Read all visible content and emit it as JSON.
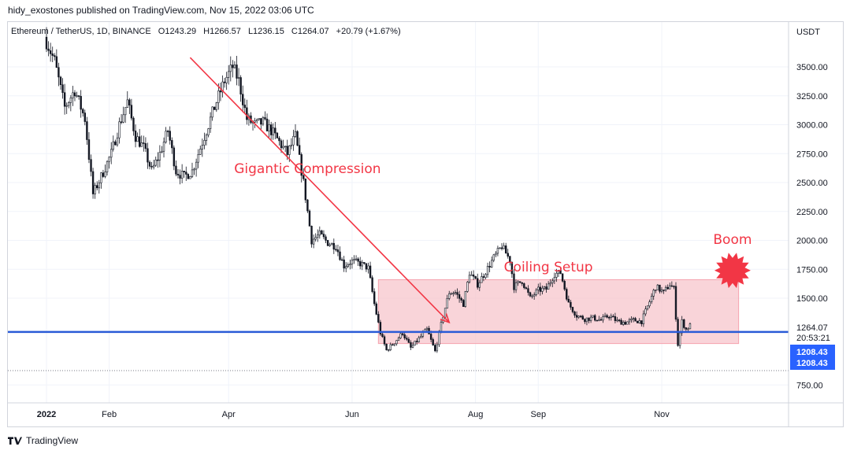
{
  "header": {
    "publisher": "hidy_exostones published on TradingView.com, Nov 15, 2022 03:06 UTC"
  },
  "legend": {
    "symbol": "Ethereum / TetherUS, 1D, BINANCE",
    "open": "O1243.29",
    "high": "H1266.57",
    "low": "L1236.15",
    "close": "C1264.07",
    "change": "+20.79 (+1.67%)"
  },
  "footer": {
    "brand": "TradingView"
  },
  "colors": {
    "candle": "#131722",
    "annotation": "#f23645",
    "zone_fill": "#f7c5cc",
    "support_line": "#2a5bd7",
    "price_badge": "#2962ff"
  },
  "chart_data": {
    "type": "line",
    "title": "",
    "xlabel": "",
    "ylabel": "USDT",
    "ylim": [
      580,
      3900
    ],
    "y_ticks": [
      "3500.00",
      "3250.00",
      "3000.00",
      "2750.00",
      "2500.00",
      "2250.00",
      "2000.00",
      "1750.00",
      "1500.00",
      "750.00"
    ],
    "x_ticks": [
      "2022",
      "Feb",
      "Apr",
      "Jun",
      "Aug",
      "Sep",
      "Nov"
    ],
    "x_tick_dates": [
      "2022-01-01",
      "2022-02-01",
      "2022-04-01",
      "2022-06-01",
      "2022-08-01",
      "2022-09-01",
      "2022-11-01"
    ],
    "grid": true,
    "series": [
      {
        "values_note_free": true,
        "points": [
          [
            "2022-01-01",
            3720
          ],
          [
            "2022-01-05",
            3550
          ],
          [
            "2022-01-10",
            3150
          ],
          [
            "2022-01-15",
            3300
          ],
          [
            "2022-01-20",
            3050
          ],
          [
            "2022-01-24",
            2400
          ],
          [
            "2022-01-28",
            2550
          ],
          [
            "2022-02-02",
            2750
          ],
          [
            "2022-02-06",
            3000
          ],
          [
            "2022-02-10",
            3200
          ],
          [
            "2022-02-14",
            2900
          ],
          [
            "2022-02-18",
            2800
          ],
          [
            "2022-02-22",
            2600
          ],
          [
            "2022-02-26",
            2750
          ],
          [
            "2022-03-02",
            2950
          ],
          [
            "2022-03-06",
            2600
          ],
          [
            "2022-03-10",
            2550
          ],
          [
            "2022-03-14",
            2600
          ],
          [
            "2022-03-18",
            2800
          ],
          [
            "2022-03-22",
            3000
          ],
          [
            "2022-03-26",
            3200
          ],
          [
            "2022-03-30",
            3380
          ],
          [
            "2022-04-03",
            3500
          ],
          [
            "2022-04-06",
            3380
          ],
          [
            "2022-04-10",
            3050
          ],
          [
            "2022-04-14",
            3000
          ],
          [
            "2022-04-18",
            3020
          ],
          [
            "2022-04-22",
            2950
          ],
          [
            "2022-04-26",
            2850
          ],
          [
            "2022-04-30",
            2750
          ],
          [
            "2022-05-04",
            2900
          ],
          [
            "2022-05-08",
            2500
          ],
          [
            "2022-05-12",
            2000
          ],
          [
            "2022-05-16",
            2050
          ],
          [
            "2022-05-20",
            1980
          ],
          [
            "2022-05-24",
            1950
          ],
          [
            "2022-05-28",
            1780
          ],
          [
            "2022-06-01",
            1820
          ],
          [
            "2022-06-05",
            1800
          ],
          [
            "2022-06-09",
            1760
          ],
          [
            "2022-06-12",
            1450
          ],
          [
            "2022-06-15",
            1200
          ],
          [
            "2022-06-18",
            1050
          ],
          [
            "2022-06-22",
            1120
          ],
          [
            "2022-06-26",
            1200
          ],
          [
            "2022-06-30",
            1070
          ],
          [
            "2022-07-04",
            1150
          ],
          [
            "2022-07-08",
            1230
          ],
          [
            "2022-07-12",
            1040
          ],
          [
            "2022-07-16",
            1350
          ],
          [
            "2022-07-19",
            1550
          ],
          [
            "2022-07-22",
            1550
          ],
          [
            "2022-07-26",
            1450
          ],
          [
            "2022-07-29",
            1720
          ],
          [
            "2022-08-02",
            1620
          ],
          [
            "2022-08-06",
            1730
          ],
          [
            "2022-08-10",
            1850
          ],
          [
            "2022-08-14",
            1950
          ],
          [
            "2022-08-18",
            1830
          ],
          [
            "2022-08-20",
            1600
          ],
          [
            "2022-08-24",
            1650
          ],
          [
            "2022-08-28",
            1500
          ],
          [
            "2022-09-01",
            1570
          ],
          [
            "2022-09-05",
            1580
          ],
          [
            "2022-09-09",
            1710
          ],
          [
            "2022-09-12",
            1720
          ],
          [
            "2022-09-16",
            1450
          ],
          [
            "2022-09-20",
            1350
          ],
          [
            "2022-09-24",
            1320
          ],
          [
            "2022-09-28",
            1330
          ],
          [
            "2022-10-02",
            1310
          ],
          [
            "2022-10-06",
            1350
          ],
          [
            "2022-10-10",
            1300
          ],
          [
            "2022-10-14",
            1290
          ],
          [
            "2022-10-18",
            1310
          ],
          [
            "2022-10-22",
            1300
          ],
          [
            "2022-10-26",
            1470
          ],
          [
            "2022-10-29",
            1600
          ],
          [
            "2022-11-02",
            1550
          ],
          [
            "2022-11-05",
            1620
          ],
          [
            "2022-11-07",
            1580
          ],
          [
            "2022-11-09",
            1100
          ],
          [
            "2022-11-11",
            1300
          ],
          [
            "2022-11-13",
            1230
          ],
          [
            "2022-11-15",
            1264
          ]
        ]
      }
    ],
    "annotations": [
      {
        "text": "Gigantic Compression",
        "x": "2022-05-10",
        "y": 2580
      },
      {
        "text": "Coiling Setup",
        "x": "2022-09-06",
        "y": 1730
      },
      {
        "text": "Boom",
        "x": "2022-12-06",
        "y": 1970
      }
    ],
    "arrow": {
      "from": [
        "2022-03-13",
        3580
      ],
      "to": [
        "2022-07-19",
        1290
      ]
    },
    "zone": {
      "x0": "2022-06-14",
      "x1": "2022-12-09",
      "y0": 1108,
      "y1": 1660
    },
    "support_level": 1208.43,
    "price_labels": {
      "last": "1264.07",
      "countdown": "20:53:21",
      "level_a": "1208.43",
      "level_b": "1208.43"
    }
  }
}
